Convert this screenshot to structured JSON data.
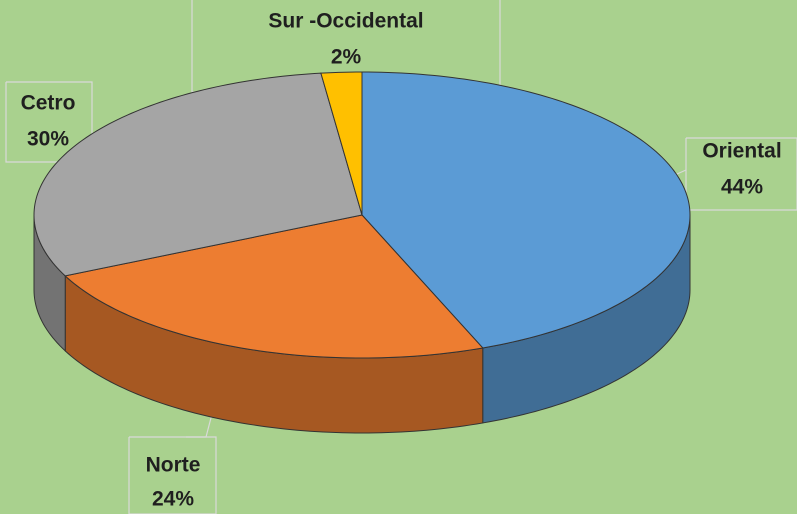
{
  "chart_data": {
    "type": "pie",
    "categories": [
      "Oriental",
      "Norte",
      "Cetro",
      "Sur -Occidental"
    ],
    "values": [
      44,
      24,
      30,
      2
    ],
    "value_labels": [
      "44%",
      "24%",
      "30%",
      "2%"
    ],
    "colors": [
      "#5b9bd5",
      "#ed7d31",
      "#a5a5a5",
      "#ffc000"
    ],
    "three_d": true
  }
}
